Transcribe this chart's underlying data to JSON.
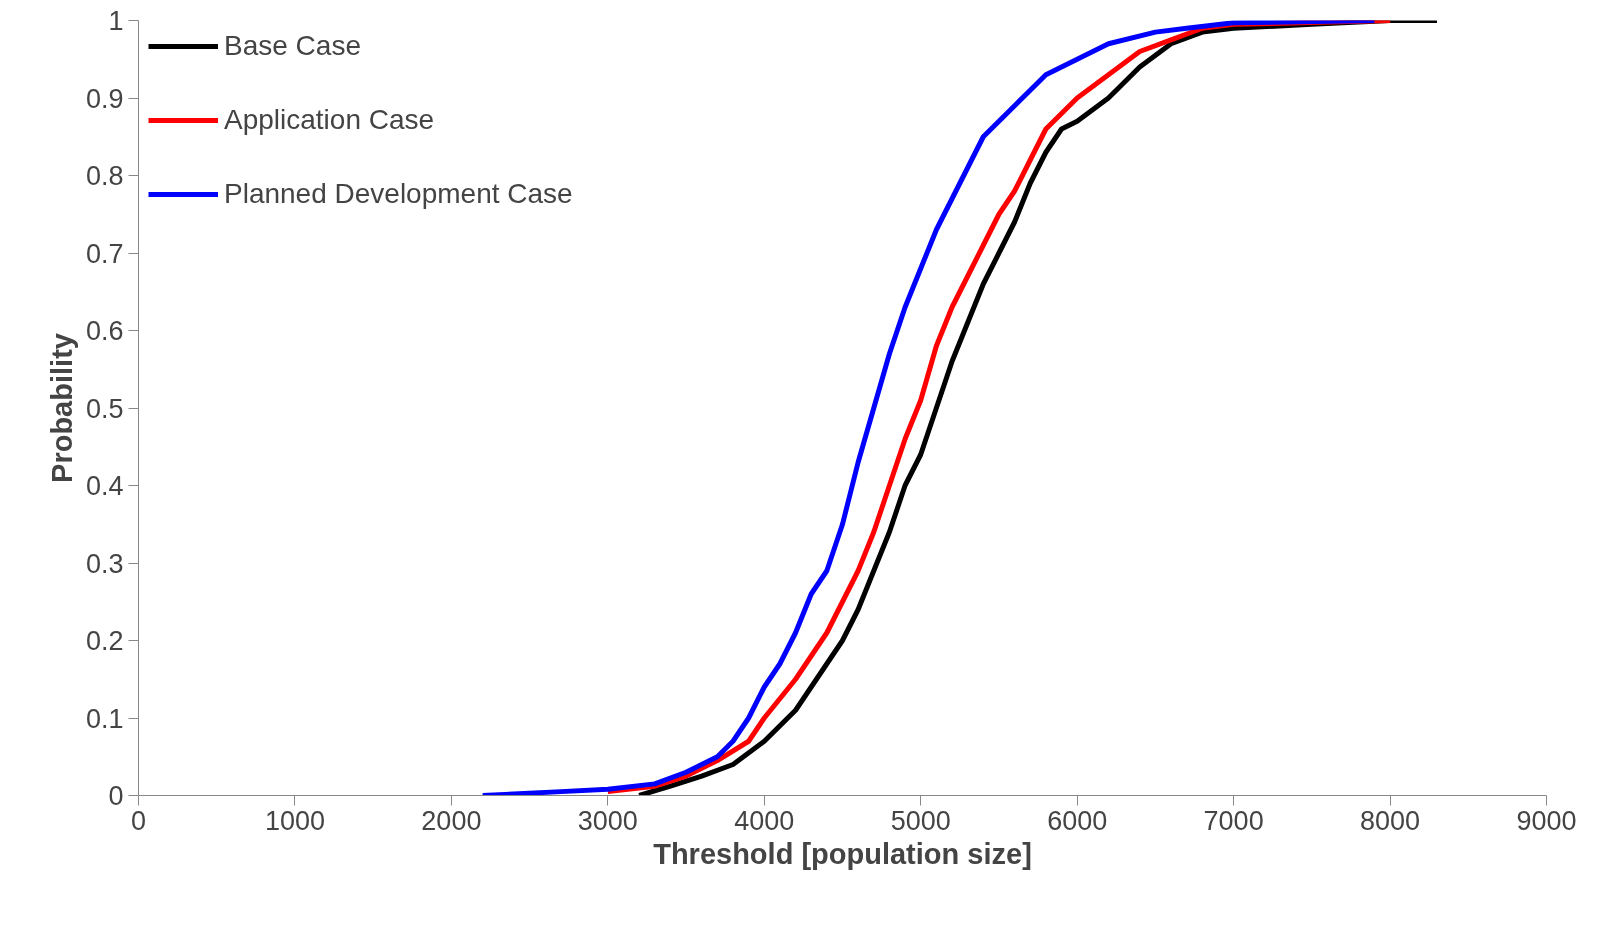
{
  "chart_data": {
    "type": "line",
    "xlabel": "Threshold [population size]",
    "ylabel": "Probability",
    "xlim": [
      0,
      9000
    ],
    "xticks": [
      0,
      1000,
      2000,
      3000,
      4000,
      5000,
      6000,
      7000,
      8000,
      9000
    ],
    "ylim": [
      0,
      1
    ],
    "yticks": [
      0,
      0.1,
      0.2,
      0.3,
      0.4,
      0.5,
      0.6,
      0.7,
      0.8,
      0.9,
      1
    ],
    "grid": false,
    "legend": "top left",
    "marker": "none",
    "line_style": "solid",
    "series": [
      {
        "name": "Base Case",
        "color": "#000000",
        "x": [
          3200,
          3400,
          3600,
          3800,
          4000,
          4200,
          4400,
          4500,
          4600,
          4700,
          4800,
          4900,
          5000,
          5100,
          5200,
          5300,
          5400,
          5500,
          5600,
          5700,
          5800,
          5900,
          6000,
          6200,
          6400,
          6600,
          6800,
          7000,
          7500,
          8000,
          8300
        ],
        "values": [
          0,
          0.012,
          0.025,
          0.04,
          0.07,
          0.11,
          0.17,
          0.2,
          0.24,
          0.29,
          0.34,
          0.4,
          0.44,
          0.5,
          0.56,
          0.61,
          0.66,
          0.7,
          0.74,
          0.79,
          0.83,
          0.86,
          0.87,
          0.9,
          0.94,
          0.97,
          0.985,
          0.99,
          0.995,
          1,
          1
        ]
      },
      {
        "name": "Application Case",
        "color": "#ff0000",
        "x": [
          3000,
          3300,
          3500,
          3700,
          3900,
          4000,
          4200,
          4400,
          4500,
          4600,
          4700,
          4800,
          4900,
          5000,
          5100,
          5200,
          5300,
          5400,
          5500,
          5600,
          5700,
          5800,
          5900,
          6000,
          6200,
          6400,
          6600,
          6800,
          7000,
          8000
        ],
        "values": [
          0.005,
          0.012,
          0.025,
          0.045,
          0.07,
          0.1,
          0.15,
          0.21,
          0.25,
          0.29,
          0.34,
          0.4,
          0.46,
          0.51,
          0.58,
          0.63,
          0.67,
          0.71,
          0.75,
          0.78,
          0.82,
          0.86,
          0.88,
          0.9,
          0.93,
          0.96,
          0.975,
          0.99,
          0.995,
          1
        ]
      },
      {
        "name": "Planned Development Case",
        "color": "#0000ff",
        "x": [
          2200,
          2700,
          3000,
          3300,
          3500,
          3700,
          3800,
          3900,
          4000,
          4100,
          4200,
          4300,
          4400,
          4500,
          4600,
          4700,
          4800,
          4900,
          5000,
          5100,
          5200,
          5300,
          5400,
          5500,
          5600,
          5700,
          5800,
          6000,
          6200,
          6500,
          6700,
          7000,
          7900
        ],
        "values": [
          0,
          0.005,
          0.008,
          0.015,
          0.03,
          0.05,
          0.07,
          0.1,
          0.14,
          0.17,
          0.21,
          0.26,
          0.29,
          0.35,
          0.43,
          0.5,
          0.57,
          0.63,
          0.68,
          0.73,
          0.77,
          0.81,
          0.85,
          0.87,
          0.89,
          0.91,
          0.93,
          0.95,
          0.97,
          0.985,
          0.99,
          0.997,
          1
        ]
      }
    ]
  }
}
